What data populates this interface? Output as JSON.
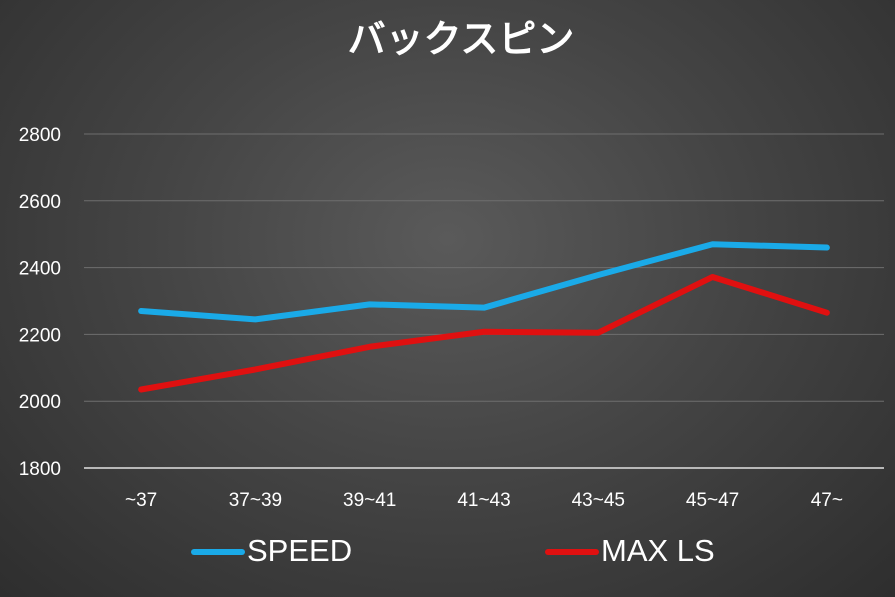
{
  "chart_data": {
    "type": "line",
    "title": "バックスピン",
    "categories": [
      "~37",
      "37~39",
      "39~41",
      "41~43",
      "43~45",
      "45~47",
      "47~"
    ],
    "ylim": [
      1800,
      2800
    ],
    "yticks": [
      1800,
      2000,
      2200,
      2400,
      2600,
      2800
    ],
    "grid": true,
    "legend_position": "bottom",
    "series": [
      {
        "name": "SPEED",
        "color": "#1aaae8",
        "values": [
          2270,
          2245,
          2290,
          2280,
          2378,
          2470,
          2460
        ]
      },
      {
        "name": "MAX LS",
        "color": "#e01010",
        "values": [
          2035,
          2095,
          2163,
          2208,
          2205,
          2372,
          2265
        ]
      }
    ]
  }
}
